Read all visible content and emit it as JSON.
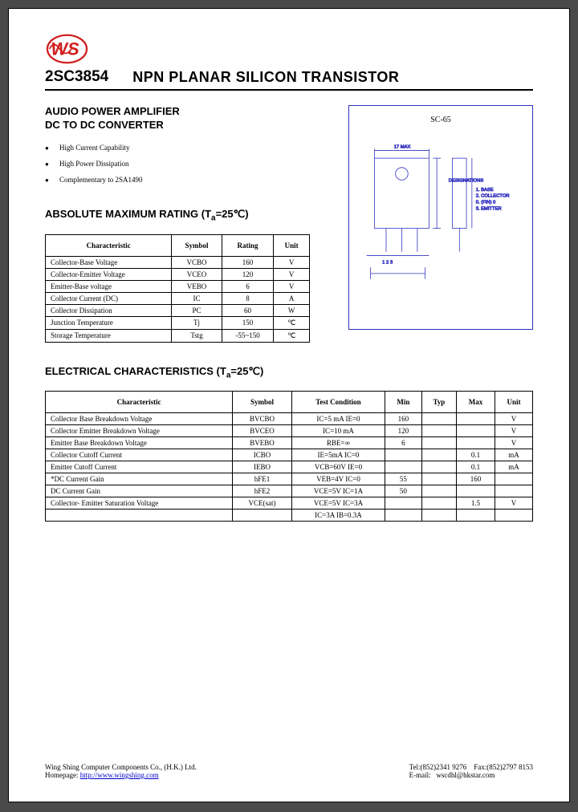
{
  "header": {
    "part_number": "2SC3854",
    "product_type": "NPN    PLANAR SILICON TRANSISTOR"
  },
  "application": {
    "line1": "AUDIO POWER AMPLIFIER",
    "line2": "DC TO DC CONVERTER"
  },
  "features": [
    "High Current Capability",
    "High Power Dissipation",
    "Complementary to 2SA1490"
  ],
  "package": {
    "name": "SC-65",
    "designations_title": "DESIGNATIONS",
    "designations": [
      "1. BASE",
      "2. COLLECTOR",
      "0. (FIN) 0",
      "3. EMITTER"
    ]
  },
  "amr": {
    "title_prefix": "ABSOLUTE MAXIMUM RATING (T",
    "title_sub": "a",
    "title_suffix": "=25℃)",
    "columns": [
      "Characteristic",
      "Symbol",
      "Rating",
      "Unit"
    ],
    "rows": [
      [
        "Collector-Base Voltage",
        "VCBO",
        "160",
        "V"
      ],
      [
        "Collector-Emitter Voltage",
        "VCEO",
        "120",
        "V"
      ],
      [
        "Emitter-Base voltage",
        "VEBO",
        "6",
        "V"
      ],
      [
        "Collector Current (DC)",
        "IC",
        "8",
        "A"
      ],
      [
        "Collector Dissipation",
        "PC",
        "60",
        "W"
      ],
      [
        "Junction Temperature",
        "Tj",
        "150",
        "℃"
      ],
      [
        "Storage Temperature",
        "Tstg",
        "-55~150",
        "℃"
      ]
    ]
  },
  "ec": {
    "title_prefix": "ELECTRICAL CHARACTERISTICS (T",
    "title_sub": "a",
    "title_suffix": "=25℃)",
    "columns": [
      "Characteristic",
      "Symbol",
      "Test Condition",
      "Min",
      "Typ",
      "Max",
      "Unit"
    ],
    "rows": [
      [
        "Collector Base Breakdown Voltage",
        "BVCBO",
        "IC=5 mA   IE=0",
        "160",
        "",
        "",
        "V"
      ],
      [
        "Collector Emitter Breakdown Voltage",
        "BVCEO",
        "IC=10 mA",
        "120",
        "",
        "",
        "V"
      ],
      [
        "Emitter Base Breakdown Voltage",
        "BVEBO",
        "RBE=∞",
        "6",
        "",
        "",
        "V"
      ],
      [
        "Collector Cutoff Current",
        "ICBO",
        "IE=5mA   IC=0",
        "",
        "",
        "0.1",
        "mA"
      ],
      [
        "Emitter Cutoff Current",
        "IEBO",
        "VCB=60V   IE=0",
        "",
        "",
        "0.1",
        "mA"
      ],
      [
        "*DC Current Gain",
        "hFE1",
        "VEB=4V   IC=0",
        "55",
        "",
        "160",
        ""
      ],
      [
        "DC Current Gain",
        "hFE2",
        "VCE=5V   IC=1A",
        "50",
        "",
        "",
        ""
      ],
      [
        "Collector- Emitter Saturation Voltage",
        "VCE(sat)",
        "VCE=5V   IC=3A",
        "",
        "",
        "1.5",
        "V"
      ],
      [
        "",
        "",
        "IC=3A   IB=0.3A",
        "",
        "",
        "",
        ""
      ]
    ]
  },
  "footer": {
    "company": "Wing Shing Computer Components Co., (H.K.) Ltd.",
    "homepage_label": "Homepage:",
    "homepage_url": "http://www.wingshing.com",
    "tel": "Tel:(852)2341 9276",
    "fax": "Fax:(852)2797 8153",
    "email_label": "E-mail:",
    "email": "wscdhl@hkstar.com"
  },
  "colors": {
    "diagram_stroke": "#3030c0",
    "logo_red": "#d02020"
  }
}
